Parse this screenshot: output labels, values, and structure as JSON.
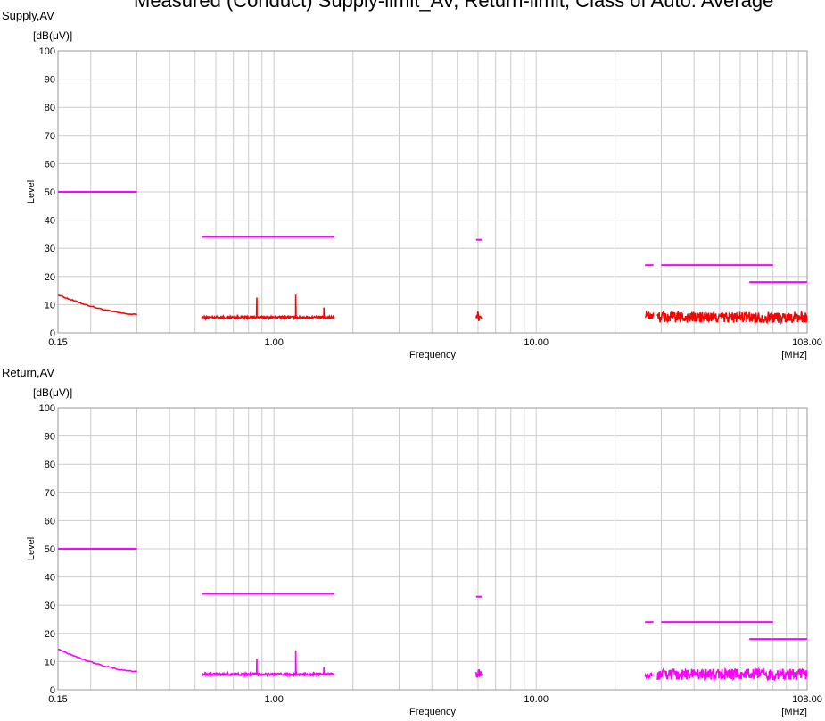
{
  "header_fragment": "Measured (Conduct) Supply-limit_AV, Return-limit, Class of Auto: Average",
  "colors": {
    "supply_trace": "#ff0000",
    "return_trace": "#ff00ff",
    "limit": "#ff00ff",
    "grid": "#cccccc"
  },
  "chart_data": [
    {
      "type": "line",
      "title": "Supply,AV",
      "unit_label": "[dB(μV)]",
      "ylabel": "Level",
      "xlabel": "Frequency",
      "x_unit": "[MHz]",
      "x_scale": "log",
      "xlim": [
        0.15,
        108
      ],
      "ylim": [
        0,
        100
      ],
      "y_ticks": [
        "0",
        "10",
        "20",
        "30",
        "40",
        "50",
        "60",
        "70",
        "80",
        "90",
        "100"
      ],
      "x_ticks": [
        {
          "value": 0.15,
          "label": "0.15"
        },
        {
          "value": 1,
          "label": "1.00"
        },
        {
          "value": 10,
          "label": "10.00"
        },
        {
          "value": 108,
          "label": "108.00"
        }
      ],
      "grid": true,
      "limit_segments": [
        {
          "x": [
            0.15,
            0.3
          ],
          "y": 50
        },
        {
          "x": [
            0.53,
            1.7
          ],
          "y": 34
        },
        {
          "x": [
            5.9,
            6.2
          ],
          "y": 33
        },
        {
          "x": [
            26,
            28
          ],
          "y": 24
        },
        {
          "x": [
            30,
            80
          ],
          "y": 24
        },
        {
          "x": [
            65,
            108
          ],
          "y": 18
        }
      ],
      "trace_segments": [
        {
          "x": [
            0.15,
            0.3
          ],
          "y_start": 13.5,
          "y_end": 6.5
        },
        {
          "x": [
            0.53,
            1.7
          ],
          "base": 5.5,
          "noise": 0.4,
          "spikes": [
            {
              "x": 0.86,
              "y": 12.5
            },
            {
              "x": 1.21,
              "y": 13.5
            },
            {
              "x": 1.55,
              "y": 9.0
            }
          ]
        },
        {
          "x": [
            5.9,
            6.2
          ],
          "base": 6.0,
          "noise": 1.8
        },
        {
          "x": [
            26,
            28
          ],
          "base": 6.0,
          "noise": 1.8
        },
        {
          "x": [
            29,
            108
          ],
          "base": 5.5,
          "noise": 2.0
        }
      ]
    },
    {
      "type": "line",
      "title": "Return,AV",
      "unit_label": "[dB(μV)]",
      "ylabel": "Level",
      "xlabel": "Frequency",
      "x_unit": "[MHz]",
      "x_scale": "log",
      "xlim": [
        0.15,
        108
      ],
      "ylim": [
        0,
        100
      ],
      "y_ticks": [
        "0",
        "10",
        "20",
        "30",
        "40",
        "50",
        "60",
        "70",
        "80",
        "90",
        "100"
      ],
      "x_ticks": [
        {
          "value": 0.15,
          "label": "0.15"
        },
        {
          "value": 1,
          "label": "1.00"
        },
        {
          "value": 10,
          "label": "10.00"
        },
        {
          "value": 108,
          "label": "108.00"
        }
      ],
      "grid": true,
      "limit_segments": [
        {
          "x": [
            0.15,
            0.3
          ],
          "y": 50
        },
        {
          "x": [
            0.53,
            1.7
          ],
          "y": 34
        },
        {
          "x": [
            5.9,
            6.2
          ],
          "y": 33
        },
        {
          "x": [
            26,
            28
          ],
          "y": 24
        },
        {
          "x": [
            30,
            80
          ],
          "y": 24
        },
        {
          "x": [
            65,
            108
          ],
          "y": 18
        }
      ],
      "trace_segments": [
        {
          "x": [
            0.15,
            0.3
          ],
          "y_start": 14.5,
          "y_end": 6.5
        },
        {
          "x": [
            0.53,
            1.7
          ],
          "base": 5.5,
          "noise": 0.4,
          "spikes": [
            {
              "x": 0.86,
              "y": 11.0
            },
            {
              "x": 1.21,
              "y": 14.0
            },
            {
              "x": 1.55,
              "y": 8.0
            }
          ]
        },
        {
          "x": [
            5.9,
            6.2
          ],
          "base": 6.0,
          "noise": 1.8
        },
        {
          "x": [
            26,
            28
          ],
          "base": 5.0,
          "noise": 0.8
        },
        {
          "x": [
            29,
            108
          ],
          "base": 5.5,
          "noise": 2.0
        }
      ]
    }
  ]
}
